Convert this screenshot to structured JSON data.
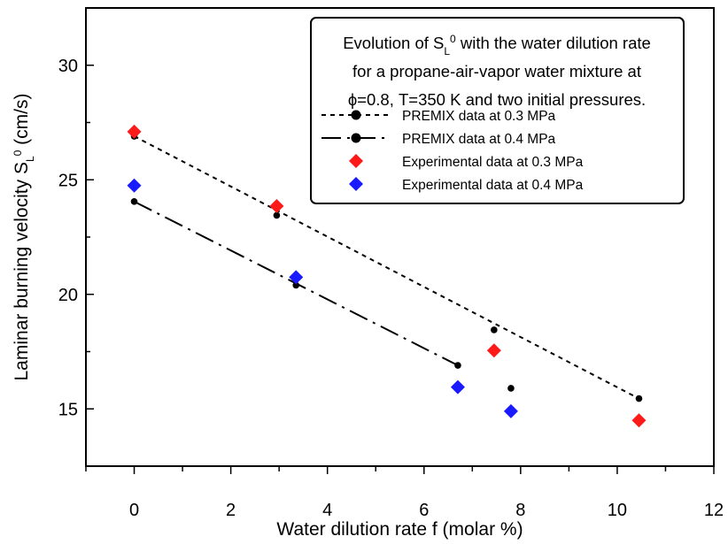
{
  "chart_data": {
    "type": "scatter",
    "title": "",
    "xlabel": "Water dilution rate f (molar %)",
    "ylabel": {
      "main": "Laminar burning velocity S",
      "sub": "L",
      "sup": "0",
      "unit": " (cm/s)"
    },
    "xlim": [
      -1,
      12
    ],
    "ylim": [
      12.5,
      32.5
    ],
    "x_ticks": [
      0,
      2,
      4,
      6,
      8,
      10,
      12
    ],
    "y_ticks": [
      15,
      20,
      25,
      30
    ],
    "grid": false,
    "legend_placement": "top-right",
    "legend_title_lines": [
      {
        "pre": "Evolution of S",
        "sub": "L",
        "sup": "0",
        "post": " with the water dilution rate"
      },
      {
        "pre": "for a propane-air-vapor water mixture at",
        "sub": "",
        "sup": "",
        "post": ""
      },
      {
        "pre": "ϕ=0.8, T=350 K and two initial pressures.",
        "sub": "",
        "sup": "",
        "post": ""
      }
    ],
    "series": [
      {
        "name": "PREMIX data at 0.3 MPa",
        "marker": "circle",
        "color": "#000000",
        "line": "dashed",
        "x": [
          0,
          2.95,
          7.45,
          10.45
        ],
        "y": [
          26.9,
          23.45,
          18.45,
          15.45
        ]
      },
      {
        "name": "PREMIX data at 0.4 MPa",
        "marker": "circle",
        "color": "#000000",
        "line": "dashdot",
        "x": [
          0,
          3.35,
          6.7,
          7.8
        ],
        "y": [
          24.05,
          20.4,
          16.9,
          15.9
        ]
      },
      {
        "name": "Experimental data at 0.3 MPa",
        "marker": "diamond",
        "color": "#ff1a1a",
        "line": "none",
        "x": [
          0,
          2.95,
          7.45,
          10.45
        ],
        "y": [
          27.1,
          23.85,
          17.55,
          14.5
        ]
      },
      {
        "name": "Experimental data at 0.4 MPa",
        "marker": "diamond",
        "color": "#1a1aff",
        "line": "none",
        "x": [
          0,
          3.35,
          6.7,
          7.8
        ],
        "y": [
          24.75,
          20.75,
          15.95,
          14.9
        ]
      }
    ],
    "fit_lines": [
      {
        "name": "fit-0.3MPa",
        "x": [
          0,
          10.45
        ],
        "y": [
          26.9,
          15.45
        ],
        "style": "dashed"
      },
      {
        "name": "fit-0.4MPa",
        "x": [
          0,
          6.7
        ],
        "y": [
          24.05,
          16.9
        ],
        "style": "dashdot"
      }
    ]
  }
}
